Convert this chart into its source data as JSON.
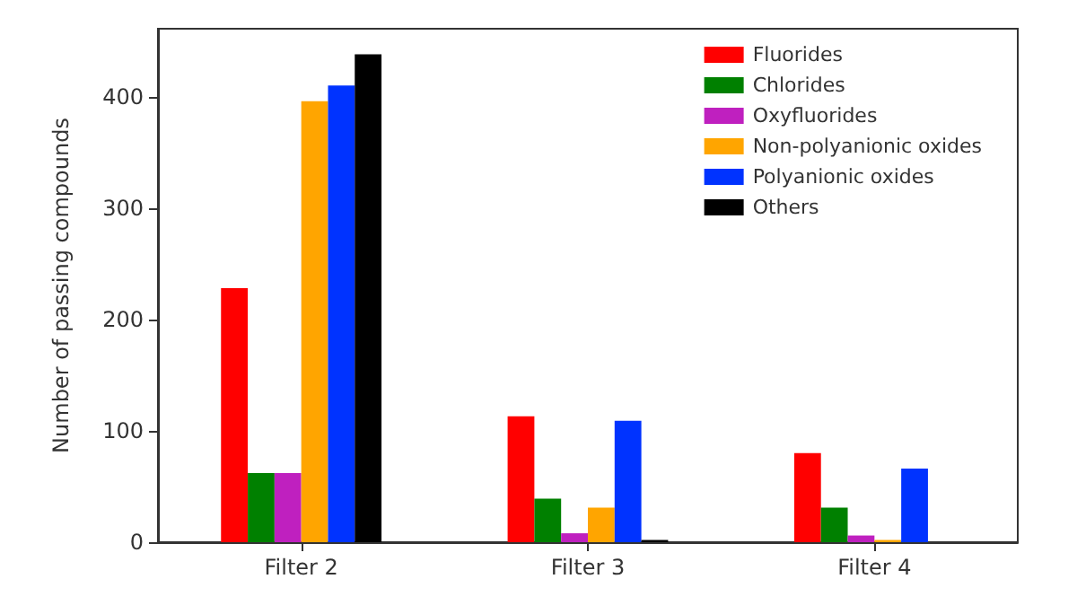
{
  "chart_data": {
    "type": "bar",
    "ylabel": "Number of passing compounds",
    "categories": [
      "Filter 2",
      "Filter 3",
      "Filter 4"
    ],
    "series": [
      {
        "name": "Fluorides",
        "color": "#ff0000",
        "values": [
          228,
          113,
          80
        ]
      },
      {
        "name": "Chlorides",
        "color": "#008000",
        "values": [
          62,
          39,
          31
        ]
      },
      {
        "name": "Oxyfluorides",
        "color": "#bf20bf",
        "values": [
          62,
          8,
          6
        ]
      },
      {
        "name": "Non-polyanionic oxides",
        "color": "#ffa500",
        "values": [
          396,
          31,
          2
        ]
      },
      {
        "name": "Polyanionic oxides",
        "color": "#0033ff",
        "values": [
          410,
          109,
          66
        ]
      },
      {
        "name": "Others",
        "color": "#000000",
        "values": [
          438,
          2,
          0
        ]
      }
    ],
    "ylim": [
      0,
      461
    ],
    "yticks": [
      0,
      100,
      200,
      300,
      400
    ],
    "grid": false,
    "legend": "top right"
  }
}
